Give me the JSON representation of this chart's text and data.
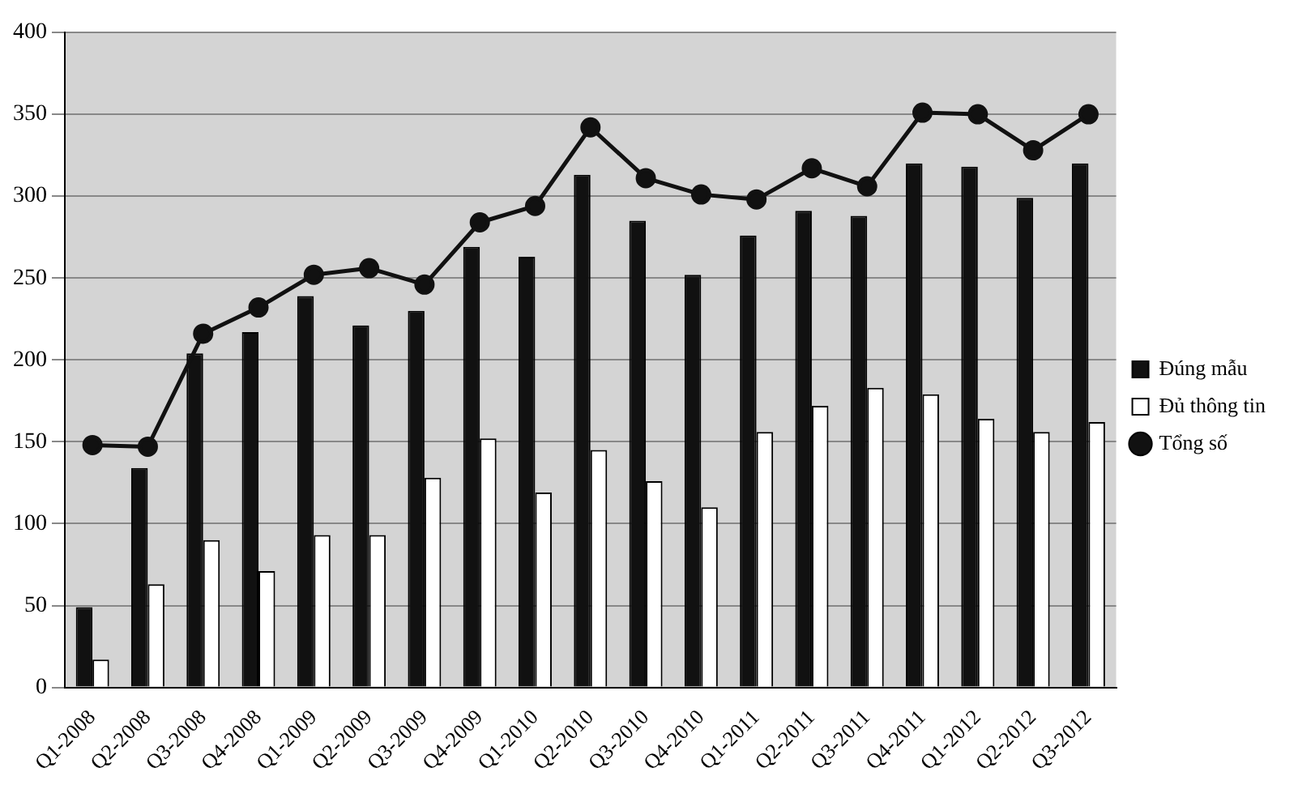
{
  "chart_data": {
    "type": "bar",
    "categories": [
      "Q1-2008",
      "Q2-2008",
      "Q3-2008",
      "Q4-2008",
      "Q1-2009",
      "Q2-2009",
      "Q3-2009",
      "Q4-2009",
      "Q1-2010",
      "Q2-2010",
      "Q3-2010",
      "Q4-2010",
      "Q1-2011",
      "Q2-2011",
      "Q3-2011",
      "Q4-2011",
      "Q1-2012",
      "Q2-2012",
      "Q3-2012"
    ],
    "series": [
      {
        "name": "Đúng mẫu",
        "color": "#111111",
        "values": [
          49,
          134,
          204,
          217,
          239,
          221,
          230,
          269,
          263,
          313,
          285,
          252,
          276,
          291,
          288,
          320,
          318,
          299,
          320
        ]
      },
      {
        "name": "Đủ thông tin",
        "color": "#ffffff",
        "values": [
          17,
          63,
          90,
          71,
          93,
          93,
          128,
          152,
          119,
          145,
          126,
          110,
          156,
          172,
          183,
          179,
          164,
          156,
          162
        ]
      },
      {
        "name": "Tổng số",
        "type": "line",
        "color": "#111111",
        "marker": "circle",
        "values": [
          148,
          147,
          216,
          232,
          252,
          256,
          246,
          284,
          294,
          342,
          311,
          301,
          298,
          317,
          306,
          351,
          350,
          328,
          350
        ]
      }
    ],
    "ylim": [
      0,
      400
    ],
    "yticks": [
      0,
      50,
      100,
      150,
      200,
      250,
      300,
      350,
      400
    ],
    "grid": "y",
    "legend": "right"
  }
}
